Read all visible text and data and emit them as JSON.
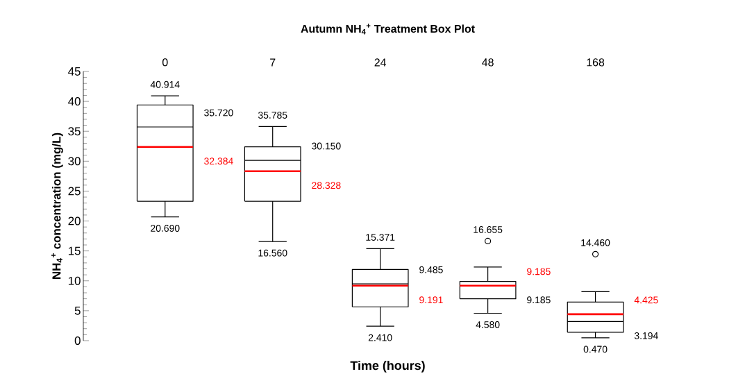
{
  "chart_data": {
    "type": "box",
    "title": "Autumn NH$_{4}$$^{+}$ Treatment Box Plot",
    "xlabel": "Time (hours)",
    "ylabel": "NH$_{4}$$^{+}$ concentration (mg/L)",
    "categories": [
      "0",
      "7",
      "24",
      "48",
      "168"
    ],
    "boxes": [
      {
        "low": 20.69,
        "q1": 23.3,
        "median": 35.72,
        "q3": 39.4,
        "high": 40.914,
        "mean": 32.384
      },
      {
        "low": 16.56,
        "q1": 23.3,
        "median": 30.15,
        "q3": 32.4,
        "high": 35.785,
        "mean": 28.328
      },
      {
        "low": 2.41,
        "q1": 5.65,
        "median": 9.485,
        "q3": 11.9,
        "high": 15.371,
        "mean": 9.191
      },
      {
        "low": 4.58,
        "q1": 7.0,
        "median": 9.185,
        "q3": 9.9,
        "high": 12.3,
        "mean": 9.185,
        "outliers": [
          16.655
        ]
      },
      {
        "low": 0.47,
        "q1": 1.4,
        "median": 3.194,
        "q3": 6.45,
        "high": 8.2,
        "mean": 4.425,
        "outliers": [
          14.46
        ]
      }
    ],
    "ylim": [
      0,
      45
    ],
    "yticks": [
      0,
      5,
      10,
      15,
      20,
      25,
      30,
      35,
      40,
      45
    ],
    "annotations": [
      "40.914",
      "35.720",
      "32.384",
      "20.690",
      "35.785",
      "30.150",
      "28.328",
      "16.560",
      "15.371",
      "9.485",
      "9.191",
      "2.410",
      "16.655",
      "9.185",
      "9.185",
      "4.580",
      "14.460",
      "4.425",
      "3.194",
      "0.470"
    ]
  }
}
